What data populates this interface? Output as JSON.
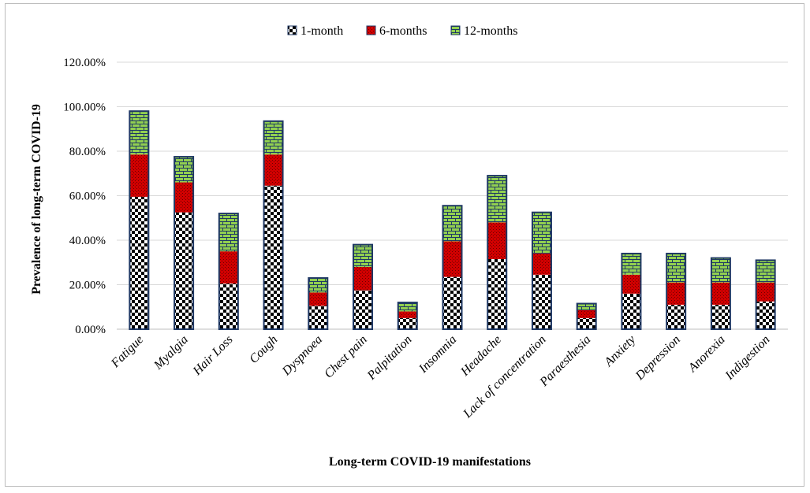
{
  "chart_data": {
    "type": "bar",
    "stacked": true,
    "title": "",
    "xlabel": "Long-term COVID-19 manifestations",
    "ylabel": "Prevalence of long-term COVID-19",
    "ylim": [
      0,
      120
    ],
    "yticks": [
      0,
      20,
      40,
      60,
      80,
      100,
      120
    ],
    "ytick_labels": [
      "0.00%",
      "20.00%",
      "40.00%",
      "60.00%",
      "80.00%",
      "100.00%",
      "120.00%"
    ],
    "grid": true,
    "legend_position": "top-center",
    "categories": [
      "Fatigue",
      "Myalgia",
      "Hair Loss",
      "Cough",
      "Dyspnoea",
      "Chest pain",
      "Palpitation",
      "Insomnia",
      "Headache",
      "Lack of concentration",
      "Paraesthesia",
      "Anxiety",
      "Depression",
      "Anorexia",
      "Indigestion"
    ],
    "series": [
      {
        "name": "1-month",
        "pattern": "checker",
        "colors": [
          "#000000",
          "#ffffff"
        ],
        "values": [
          59.5,
          52.5,
          20.5,
          64.5,
          10.5,
          17.5,
          5.0,
          23.5,
          31.5,
          24.5,
          5.0,
          16.0,
          11.0,
          11.0,
          12.5
        ]
      },
      {
        "name": "6-months",
        "pattern": "dotted",
        "colors": [
          "#d10000",
          "#6a0000"
        ],
        "values": [
          19.0,
          13.5,
          14.5,
          14.0,
          6.0,
          10.5,
          3.0,
          16.0,
          16.5,
          9.5,
          3.5,
          8.5,
          10.0,
          10.0,
          8.5
        ]
      },
      {
        "name": "12-months",
        "pattern": "brick",
        "colors": [
          "#92d050",
          "#1f3864"
        ],
        "values": [
          19.5,
          11.5,
          17.0,
          15.0,
          6.5,
          10.0,
          4.0,
          16.0,
          21.0,
          18.5,
          3.0,
          9.5,
          13.0,
          11.0,
          10.0
        ]
      }
    ],
    "bar_outline_color": "#1f3864"
  }
}
